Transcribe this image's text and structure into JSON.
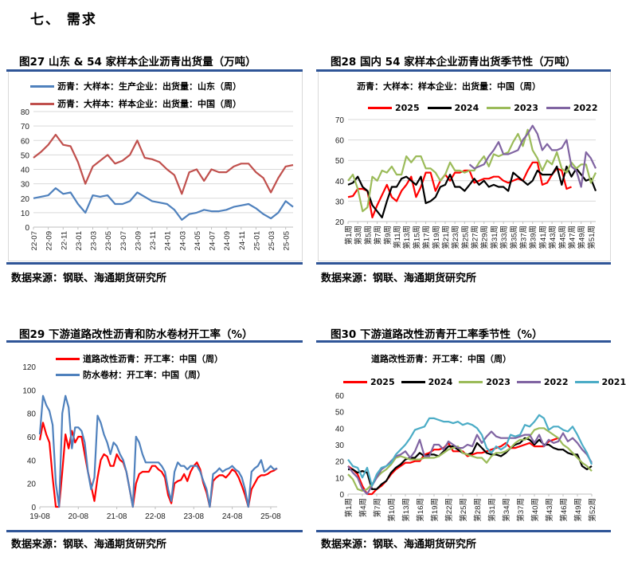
{
  "header": {
    "title": "七、   需求"
  },
  "source_text": "数据来源：钢联、海通期货研究所",
  "chart_data": [
    {
      "id": "fig27",
      "type": "line",
      "title": "图27   山东 & 54 家样本企业沥青出货量（万吨）",
      "ylim": [
        0,
        80
      ],
      "yticks": [
        0,
        10,
        20,
        30,
        40,
        50,
        60,
        70,
        80
      ],
      "grid": true,
      "legend": "top-left",
      "xticks": [
        "22-07",
        "22-09",
        "22-11",
        "23-01",
        "23-03",
        "23-05",
        "23-07",
        "23-09",
        "23-11",
        "24-01",
        "24-03",
        "24-05",
        "24-07",
        "24-09",
        "24-11",
        "25-01",
        "25-03",
        "25-05"
      ],
      "x": [
        "2022-07",
        "2022-08",
        "2022-09",
        "2022-10",
        "2022-11",
        "2022-12",
        "2023-01",
        "2023-02",
        "2023-03",
        "2023-04",
        "2023-05",
        "2023-06",
        "2023-07",
        "2023-08",
        "2023-09",
        "2023-10",
        "2023-11",
        "2023-12",
        "2024-01",
        "2024-02",
        "2024-03",
        "2024-04",
        "2024-05",
        "2024-06",
        "2024-07",
        "2024-08",
        "2024-09",
        "2024-10",
        "2024-11",
        "2024-12",
        "2025-01",
        "2025-02",
        "2025-03",
        "2025-04",
        "2025-05",
        "2025-06"
      ],
      "series": [
        {
          "name": "沥青：大样本：生产企业：出货量：山东（周）",
          "color": "#4f81bd",
          "values": [
            20,
            21,
            22,
            27,
            23,
            24,
            16,
            10,
            22,
            21,
            22,
            16,
            16,
            18,
            24,
            21,
            18,
            17,
            16,
            12,
            5,
            9,
            10,
            12,
            11,
            11,
            12,
            14,
            15,
            16,
            13,
            9,
            6,
            10,
            18,
            14
          ]
        },
        {
          "name": "沥青：大样本：样本企业：出货量：中国（周）",
          "color": "#c0504d",
          "values": [
            48,
            52,
            57,
            64,
            57,
            56,
            45,
            30,
            42,
            46,
            50,
            44,
            46,
            50,
            60,
            48,
            47,
            45,
            40,
            36,
            23,
            38,
            40,
            32,
            40,
            38,
            38,
            42,
            44,
            44,
            38,
            34,
            24,
            34,
            42,
            43
          ]
        }
      ]
    },
    {
      "id": "fig28",
      "type": "line",
      "title": "图28   国内 54 家样本企业沥青出货季节性（万吨）",
      "subtitle": "沥青：大样本：样本企业：出货量：中国（周）",
      "ylim": [
        20,
        70
      ],
      "yticks": [
        20,
        30,
        40,
        50,
        60,
        70
      ],
      "grid": true,
      "legend": "top",
      "xticks": [
        "第1周",
        "第3周",
        "第5周",
        "第7周",
        "第9周",
        "第11周",
        "第13周",
        "第15周",
        "第17周",
        "第19周",
        "第21周",
        "第23周",
        "第25周",
        "第27周",
        "第29周",
        "第31周",
        "第33周",
        "第35周",
        "第37周",
        "第39周",
        "第41周",
        "第43周",
        "第45周",
        "第47周",
        "第49周",
        "第51周"
      ],
      "series": [
        {
          "name": "2025",
          "color": "#ff0000",
          "start_week": 1,
          "values": [
            32,
            32.5,
            36,
            36,
            35,
            22,
            28,
            33,
            38,
            32,
            30,
            35,
            38,
            42,
            32,
            37,
            44,
            44,
            35,
            40,
            43,
            40,
            44,
            44,
            45,
            45,
            39,
            40,
            41,
            41,
            42,
            42,
            40,
            39,
            40,
            41,
            40,
            45,
            49,
            49,
            38,
            39,
            43,
            46,
            45,
            36,
            37
          ]
        },
        {
          "name": "2024",
          "color": "#000000",
          "start_week": 1,
          "values": [
            38,
            39,
            42,
            37,
            35,
            28,
            25,
            22,
            30,
            37,
            37,
            41,
            42,
            40,
            38,
            42,
            29,
            30,
            32,
            37,
            38,
            43,
            37,
            37,
            35,
            38,
            41,
            38,
            40,
            37,
            38,
            37,
            37,
            35,
            44,
            42,
            40,
            38,
            40,
            45,
            43,
            43,
            43,
            47,
            38,
            47,
            42,
            46,
            43,
            40,
            41,
            35
          ]
        },
        {
          "name": "2023",
          "color": "#9bbb59",
          "start_week": 1,
          "values": [
            40,
            43,
            36,
            25,
            27,
            42,
            40,
            45,
            44,
            47,
            43,
            43,
            52,
            49,
            52,
            52,
            46,
            46,
            44,
            40,
            43,
            49,
            45,
            45,
            44,
            45,
            45,
            49,
            52,
            47,
            53,
            52,
            53,
            54,
            59,
            63,
            57,
            65,
            55,
            51,
            45,
            50,
            48,
            54,
            46,
            44,
            49,
            46,
            48,
            48,
            39,
            44
          ]
        },
        {
          "name": "2022",
          "color": "#8064a2",
          "start_week": 26,
          "values": [
            48,
            46,
            47,
            48,
            52,
            55,
            59,
            53,
            53,
            54,
            55,
            60,
            63,
            67,
            63,
            55,
            58,
            55,
            55,
            56,
            60,
            47,
            45,
            37,
            54,
            51,
            46
          ]
        }
      ]
    },
    {
      "id": "fig29",
      "type": "line",
      "title": "图29   下游道路改性沥青和防水卷材开工率（%）",
      "ylim": [
        0,
        120
      ],
      "yticks": [
        0,
        20,
        40,
        60,
        80,
        100,
        120
      ],
      "grid": false,
      "legend": "top-left",
      "xticks": [
        "19-08",
        "20-08",
        "21-08",
        "22-08",
        "23-08",
        "24-08",
        "25-08"
      ],
      "x": [
        "2019-08",
        "2019-09",
        "2019-10",
        "2019-11",
        "2019-12",
        "2020-01",
        "2020-02",
        "2020-03",
        "2020-04",
        "2020-05",
        "2020-06",
        "2020-07",
        "2020-08",
        "2020-09",
        "2020-10",
        "2020-11",
        "2020-12",
        "2021-01",
        "2021-02",
        "2021-03",
        "2021-04",
        "2021-05",
        "2021-06",
        "2021-07",
        "2021-08",
        "2021-09",
        "2021-10",
        "2021-11",
        "2021-12",
        "2022-01",
        "2022-02",
        "2022-03",
        "2022-04",
        "2022-05",
        "2022-06",
        "2022-07",
        "2022-08",
        "2022-09",
        "2022-10",
        "2022-11",
        "2022-12",
        "2023-01",
        "2023-02",
        "2023-03",
        "2023-04",
        "2023-05",
        "2023-06",
        "2023-07",
        "2023-08",
        "2023-09",
        "2023-10",
        "2023-11",
        "2023-12",
        "2024-01",
        "2024-02",
        "2024-03",
        "2024-04",
        "2024-05",
        "2024-06",
        "2024-07",
        "2024-08",
        "2024-09",
        "2024-10",
        "2024-11",
        "2024-12",
        "2025-01",
        "2025-02",
        "2025-03",
        "2025-04",
        "2025-05",
        "2025-06",
        "2025-07",
        "2025-08",
        "2025-09",
        "2025-10"
      ],
      "series": [
        {
          "name": "道路改性沥青：开工率：中国（周）",
          "color": "#ff0000",
          "values": [
            57,
            72,
            62,
            55,
            25,
            0,
            0,
            30,
            62,
            50,
            65,
            55,
            60,
            60,
            45,
            30,
            18,
            5,
            25,
            40,
            45,
            43,
            35,
            35,
            45,
            40,
            38,
            30,
            15,
            0,
            20,
            28,
            30,
            30,
            30,
            35,
            35,
            32,
            30,
            25,
            10,
            3,
            20,
            22,
            23,
            28,
            22,
            30,
            35,
            38,
            32,
            20,
            12,
            0,
            22,
            25,
            27,
            27,
            25,
            28,
            32,
            30,
            25,
            18,
            10,
            0,
            15,
            20,
            25,
            27,
            27,
            28,
            30,
            31,
            33
          ]
        },
        {
          "name": "防水卷材：开工率：中国（周）",
          "color": "#4f81bd",
          "values": [
            62,
            95,
            87,
            82,
            70,
            20,
            0,
            80,
            95,
            85,
            50,
            68,
            68,
            65,
            55,
            30,
            15,
            25,
            78,
            72,
            62,
            55,
            45,
            55,
            52,
            45,
            40,
            30,
            15,
            0,
            60,
            55,
            45,
            38,
            38,
            38,
            38,
            38,
            35,
            30,
            15,
            5,
            30,
            38,
            35,
            35,
            32,
            35,
            35,
            35,
            30,
            22,
            15,
            0,
            28,
            30,
            33,
            30,
            32,
            33,
            35,
            32,
            30,
            25,
            15,
            0,
            30,
            33,
            35,
            40,
            30,
            32,
            35,
            32,
            33
          ]
        }
      ]
    },
    {
      "id": "fig30",
      "type": "line",
      "title": "图30   下游道路改性沥青开工率季节性（%）",
      "subtitle": "道路改性沥青：开工率：中国（周）",
      "ylim": [
        0,
        60
      ],
      "yticks": [
        0,
        10,
        20,
        30,
        40,
        50,
        60
      ],
      "grid": false,
      "legend": "top",
      "xticks": [
        "第1周",
        "第4周",
        "第7周",
        "第10周",
        "第13周",
        "第16周",
        "第19周",
        "第22周",
        "第25周",
        "第28周",
        "第31周",
        "第34周",
        "第37周",
        "第40周",
        "第43周",
        "第46周",
        "第49周",
        "第52周"
      ],
      "series": [
        {
          "name": "2025",
          "color": "#ff0000",
          "start_week": 1,
          "values": [
            17,
            15,
            12,
            5,
            0,
            0,
            3,
            5,
            8,
            12,
            15,
            17,
            19,
            19,
            20,
            20,
            24,
            25,
            27,
            27,
            28,
            31,
            26,
            26,
            26,
            23,
            24,
            25,
            25,
            26,
            27,
            28,
            29,
            31,
            28,
            28,
            29,
            30,
            31,
            29,
            29,
            29,
            32,
            33,
            34
          ]
        },
        {
          "name": "2024",
          "color": "#000000",
          "start_week": 1,
          "values": [
            15,
            15,
            13,
            14,
            13,
            3,
            3,
            6,
            8,
            13,
            16,
            18,
            21,
            22,
            22,
            25,
            23,
            24,
            24,
            23,
            26,
            29,
            29,
            27,
            25,
            24,
            25,
            31,
            28,
            25,
            24,
            24,
            23,
            25,
            28,
            30,
            31,
            34,
            33,
            30,
            33,
            30,
            30,
            28,
            27,
            27,
            25,
            24,
            24,
            17,
            15,
            17
          ]
        },
        {
          "name": "2023",
          "color": "#9bbb59",
          "start_week": 1,
          "values": [
            12,
            9,
            3,
            2,
            3,
            6,
            10,
            13,
            15,
            18,
            22,
            23,
            22,
            21,
            21,
            21,
            22,
            22,
            22,
            23,
            25,
            27,
            28,
            29,
            25,
            24,
            23,
            22,
            22,
            19,
            23,
            25,
            25,
            26,
            28,
            31,
            33,
            33,
            35,
            39,
            40,
            40,
            38,
            36,
            34,
            30,
            28,
            25,
            22,
            19,
            17,
            14
          ]
        },
        {
          "name": "2022",
          "color": "#8064a2",
          "start_week": 1,
          "values": [
            17,
            13,
            10,
            3,
            0,
            5,
            10,
            15,
            17,
            20,
            23,
            24,
            26,
            22,
            26,
            33,
            23,
            23,
            30,
            30,
            27,
            32,
            30,
            28,
            28,
            30,
            29,
            36,
            31,
            35,
            38,
            35,
            34,
            34,
            34,
            34,
            35,
            36,
            36,
            31,
            36,
            29,
            33,
            31,
            32,
            37,
            32,
            34,
            31,
            27,
            24,
            19
          ]
        },
        {
          "name": "2021",
          "color": "#4bacc6",
          "start_week": 1,
          "values": [
            21,
            17,
            16,
            10,
            16,
            5,
            12,
            16,
            17,
            19,
            24,
            27,
            30,
            34,
            39,
            40,
            41,
            46,
            46,
            45,
            44,
            44,
            43,
            44,
            42,
            43,
            42,
            40,
            36,
            28,
            25,
            29,
            27,
            29,
            36,
            35,
            36,
            42,
            41,
            44,
            48,
            46,
            39,
            41,
            41,
            39,
            38,
            41,
            36,
            30,
            25,
            18
          ]
        }
      ]
    }
  ]
}
